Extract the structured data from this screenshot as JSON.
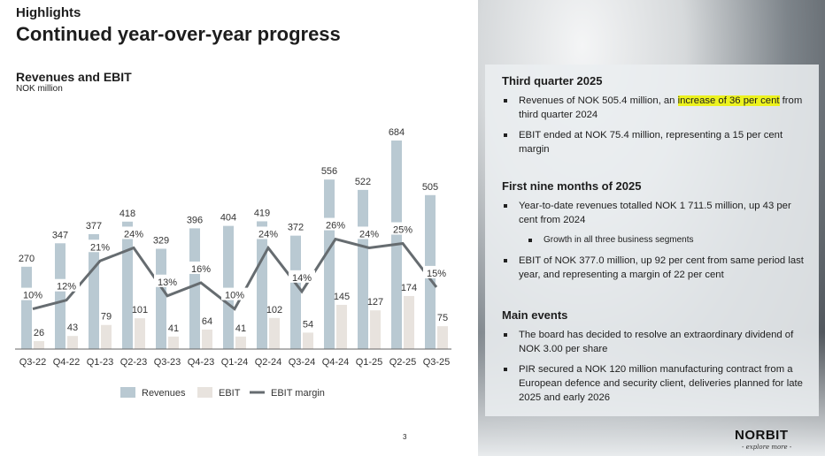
{
  "header": {
    "kicker": "Highlights",
    "title": "Continued year-over-year progress"
  },
  "chart_data": {
    "type": "bar",
    "title": "Revenues and EBIT",
    "subtitle": "NOK million",
    "categories": [
      "Q3-22",
      "Q4-22",
      "Q1-23",
      "Q2-23",
      "Q3-23",
      "Q4-23",
      "Q1-24",
      "Q2-24",
      "Q3-24",
      "Q4-24",
      "Q1-25",
      "Q2-25",
      "Q3-25"
    ],
    "series": [
      {
        "name": "Revenues",
        "type": "bar",
        "color": "#b9c9d2",
        "values": [
          270,
          347,
          377,
          418,
          329,
          396,
          404,
          419,
          372,
          556,
          522,
          684,
          505
        ]
      },
      {
        "name": "EBIT",
        "type": "bar",
        "color": "#e8e3de",
        "values": [
          26,
          43,
          79,
          101,
          41,
          64,
          41,
          102,
          54,
          145,
          127,
          174,
          75
        ]
      },
      {
        "name": "EBIT margin",
        "type": "line",
        "color": "#666c70",
        "unit": "%",
        "values": [
          10,
          12,
          21,
          24,
          13,
          16,
          10,
          24,
          14,
          26,
          24,
          25,
          15
        ]
      }
    ],
    "legend": "bottom",
    "grid": false
  },
  "panel": {
    "s1": {
      "title": "Third quarter 2025",
      "b1a": "Revenues of NOK 505.4 million, an ",
      "b1h": "increase of 36 per cent",
      "b1b": " from third quarter 2024",
      "b2": "EBIT ended at NOK 75.4 million, representing a 15 per cent margin"
    },
    "s2": {
      "title": "First nine months of 2025",
      "b1": "Year-to-date revenues totalled NOK 1 711.5 million, up 43 per cent from 2024",
      "b1sub": "Growth in all three business segments",
      "b2": "EBIT of NOK 377.0 million, up 92 per cent from same period last year, and representing a margin of 22 per cent"
    },
    "s3": {
      "title": "Main events",
      "b1": "The board has decided to resolve an extraordinary dividend of NOK 3.00 per share",
      "b2": "PIR secured a NOK 120 million manufacturing contract from a European defence and security client, deliveries planned for late 2025 and early 2026"
    }
  },
  "footer": {
    "page": "3",
    "logo": "NORBIT",
    "tagline": "- explore more -"
  }
}
